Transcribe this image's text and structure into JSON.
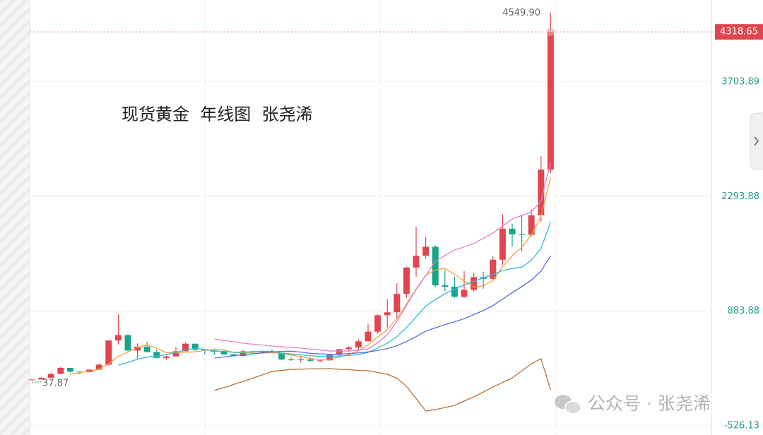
{
  "chart_data": {
    "type": "candlestick",
    "title": "现货黄金  年线图  张尧浠",
    "watermark": "公众号 · 张尧浠",
    "max_label": "4549.90",
    "open": [
      38.9,
      43.6,
      64.9,
      112,
      186,
      140,
      134,
      165,
      226,
      524,
      590,
      400,
      448,
      382,
      309,
      327,
      390,
      484,
      410,
      401,
      386,
      353,
      333,
      391,
      383,
      387,
      369,
      290,
      288,
      290,
      274,
      279,
      347,
      416,
      438,
      513,
      632,
      834,
      870,
      1097,
      1421,
      1566,
      1676,
      1202,
      1184,
      1061,
      1146,
      1303,
      1282,
      1517,
      1898,
      1829,
      1824,
      2063,
      2625
    ],
    "high": [
      44,
      70,
      127,
      197.5,
      186.5,
      140.4,
      168,
      243,
      524,
      850,
      599,
      488,
      509,
      406,
      340,
      442,
      500,
      485,
      418,
      424,
      403,
      360,
      406,
      397,
      396,
      416,
      370,
      314,
      338,
      317,
      293,
      350,
      417,
      456,
      538,
      730,
      842,
      1032,
      1227,
      1431,
      1921,
      1796,
      1696,
      1392,
      1308,
      1375,
      1358,
      1366,
      1557,
      2075,
      1959,
      2070,
      2135,
      2790,
      4549.9
    ],
    "low": [
      37.87,
      43.4,
      63.9,
      110,
      128.8,
      103,
      129,
      160,
      216,
      474,
      391,
      297,
      374,
      303,
      284,
      326,
      390,
      395,
      356,
      346,
      344,
      330,
      326,
      370,
      372,
      367,
      283,
      273,
      252,
      263,
      255,
      277,
      319,
      372,
      411,
      513,
      602,
      681,
      802,
      1045,
      1308,
      1527,
      1180,
      1131,
      1046,
      1046,
      1123,
      1160,
      1266,
      1451,
      1677,
      1615,
      1804,
      1984,
      2584
    ],
    "close": [
      43.6,
      64.9,
      112,
      186,
      140,
      134,
      165,
      226,
      524,
      590,
      400,
      448,
      382,
      309,
      327,
      390,
      484,
      410,
      401,
      386,
      353,
      333,
      391,
      383,
      387,
      369,
      290,
      288,
      290,
      274,
      279,
      347,
      416,
      438,
      513,
      632,
      834,
      870,
      1097,
      1421,
      1566,
      1676,
      1202,
      1184,
      1061,
      1146,
      1303,
      1282,
      1517,
      1898,
      1829,
      1824,
      2063,
      2625,
      4318.65
    ],
    "up_color": "#e0464f",
    "down_color": "#16a689",
    "ylim": [
      -526.13,
      4711
    ],
    "yticks": [
      -526.13,
      883.88,
      2293.88,
      3703.89
    ],
    "grid": true,
    "lines": [
      {
        "color": "#f5a03c",
        "values": [
          null,
          null,
          null,
          null,
          109.3,
          127.4,
          147.4,
          170.2,
          237.8,
          327.8,
          381,
          437.6,
          468.8,
          425.8,
          373.2,
          371.2,
          378.4,
          384,
          402.4,
          414.2,
          406.8,
          376.6,
          372.8,
          369.2,
          369.4,
          372.6,
          364,
          343.4,
          324.8,
          302.2,
          284.2,
          295.6,
          321.2,
          350.8,
          398.6,
          469.2,
          566.6,
          657.4,
          789.2,
          970.8,
          1157.6,
          1326,
          1392.4,
          1409.8,
          1337.8,
          1253.8,
          1179.2,
          1195.2,
          1261.8,
          1429.2,
          1565.8,
          1670,
          1826.2,
          2047.8,
          2531.9
        ]
      },
      {
        "color": "#2bbcd8",
        "values": [
          null,
          null,
          null,
          null,
          null,
          null,
          null,
          null,
          null,
          218.6,
          254.2,
          292.5,
          319.5,
          331.8,
          350.5,
          376.1,
          408,
          426.4,
          414.1,
          393.7,
          389,
          377.5,
          378.4,
          385.8,
          391.8,
          389.7,
          370.3,
          358.1,
          347,
          335.8,
          328.4,
          329.8,
          332.3,
          337.8,
          350.4,
          376.7,
          431.1,
          489.3,
          570,
          684.7,
          813.4,
          946.3,
          1024.9,
          1099.5,
          1154.3,
          1205.7,
          1252.6,
          1293.8,
          1335.8,
          1383.5,
          1409.8,
          1424.6,
          1510.7,
          1654.8,
          1980.6
        ]
      },
      {
        "color": "#5a6ee0",
        "values": [
          null,
          null,
          null,
          null,
          null,
          null,
          null,
          null,
          null,
          null,
          null,
          null,
          null,
          null,
          null,
          null,
          null,
          null,
          null,
          306.2,
          321.6,
          335,
          349,
          358.8,
          371.2,
          382.9,
          389.2,
          392.3,
          380.6,
          364.8,
          358.7,
          353.7,
          355.4,
          361.8,
          371.1,
          383.2,
          400.7,
          423.7,
          458.5,
          510.3,
          570.9,
          638.1,
          678.6,
          718.7,
          752.4,
          791.2,
          841.9,
          891.6,
          952.9,
          1034.1,
          1111.6,
          1185.5,
          1267.8,
          1377.2,
          1567.5
        ]
      },
      {
        "color": "#e27fd3",
        "values": [
          null,
          null,
          null,
          null,
          null,
          null,
          null,
          null,
          null,
          null,
          null,
          null,
          null,
          null,
          null,
          null,
          null,
          null,
          null,
          542,
          525,
          507,
          490,
          478,
          467,
          455,
          446,
          438,
          429,
          417,
          406,
          394,
          394,
          394,
          405,
          420,
          498,
          594,
          759,
          955,
          1150,
          1320,
          1497,
          1570,
          1636,
          1675,
          1714,
          1780,
          1845,
          1930,
          2018,
          2060,
          2105,
          2235,
          2713
        ]
      },
      {
        "color": "#b5733a",
        "values": [
          null,
          null,
          null,
          null,
          null,
          null,
          null,
          null,
          null,
          null,
          null,
          null,
          null,
          null,
          null,
          null,
          null,
          null,
          null,
          -92,
          -55,
          -18,
          20,
          60,
          100,
          142,
          155,
          168,
          171,
          174,
          176,
          177,
          170,
          163,
          157,
          151,
          130,
          108,
          60,
          -40,
          -190,
          -344,
          -327,
          -300,
          -275,
          -222,
          -170,
          -110,
          -49,
          8,
          64,
          150,
          238,
          299,
          -84
        ]
      }
    ]
  }
}
